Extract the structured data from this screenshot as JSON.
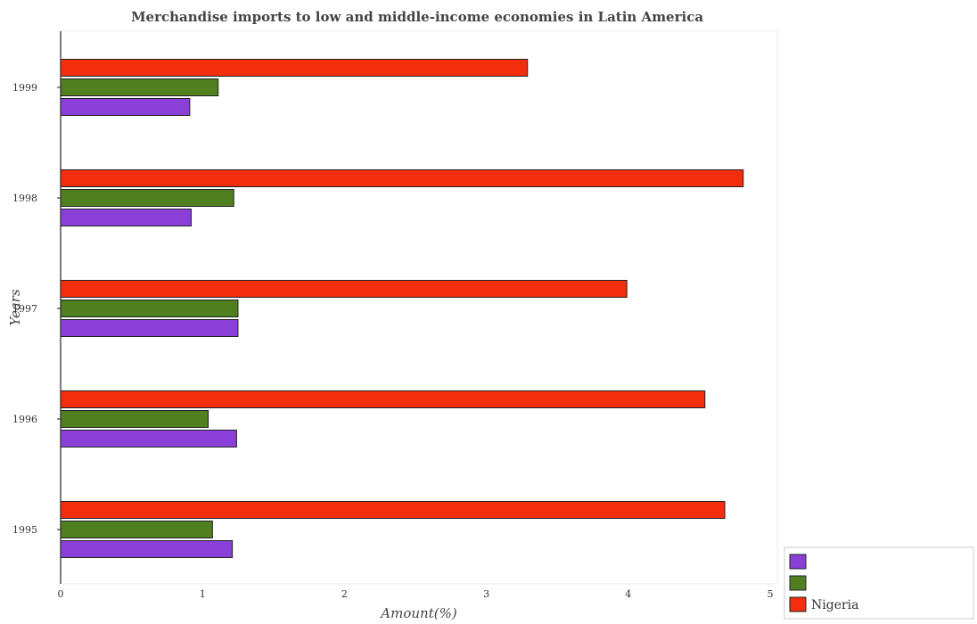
{
  "chart_data": {
    "type": "bar",
    "orientation": "horizontal",
    "title": "Merchandise imports to low and middle-income economies in Latin America",
    "xlabel": "Amount(%)",
    "ylabel": "Years",
    "categories": [
      "1995",
      "1996",
      "1997",
      "1998",
      "1999"
    ],
    "xlim": [
      0,
      5
    ],
    "x_ticks": [
      "0",
      "1",
      "2",
      "3",
      "4",
      "5"
    ],
    "series": [
      {
        "name": "",
        "color": "#8b3fd9",
        "values": [
          1.21,
          1.24,
          1.25,
          0.92,
          0.91
        ]
      },
      {
        "name": "",
        "color": "#4f7f1e",
        "values": [
          1.07,
          1.04,
          1.25,
          1.22,
          1.11
        ]
      },
      {
        "name": "Nigeria",
        "color": "#f22e0c",
        "values": [
          4.68,
          4.54,
          3.99,
          4.81,
          3.29
        ]
      }
    ],
    "grid": false,
    "legend_position": "bottom-right"
  }
}
